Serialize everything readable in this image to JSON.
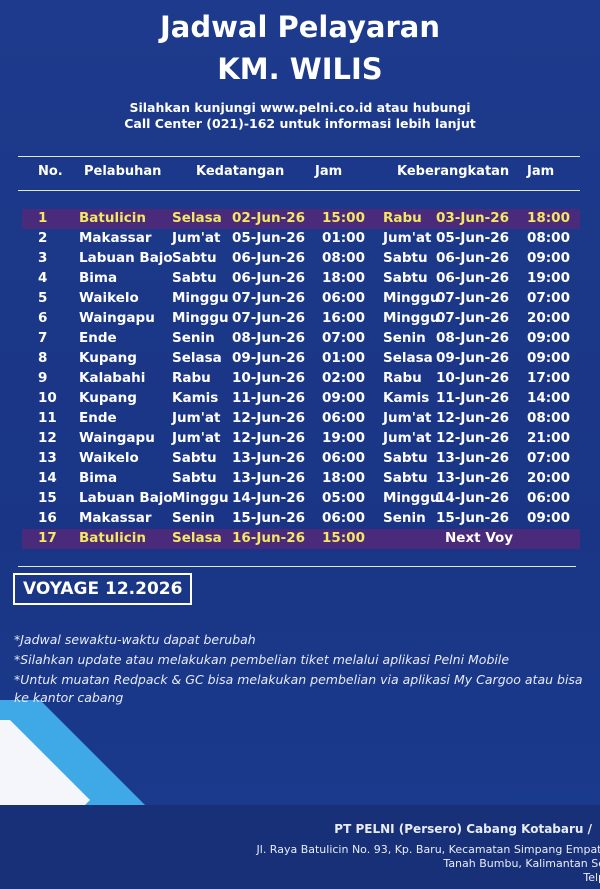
{
  "header": {
    "title": "Jadwal Pelayaran",
    "ship": "KM. WILIS",
    "info": [
      "Silahkan  kunjungi  www.pelni.co.id  atau  hubungi",
      "Call Center (021)-162 untuk informasi lebih lanjut"
    ]
  },
  "table": {
    "columns": [
      "No.",
      "Pelabuhan",
      "Kedatangan",
      "Jam",
      "Keberangkatan",
      "Jam"
    ],
    "rows": [
      [
        "1",
        "Batulicin",
        "Selasa",
        "02-Jun-26",
        "15:00",
        "Rabu",
        "03-Jun-26",
        "18:00"
      ],
      [
        "2",
        "Makassar",
        "Jum'at",
        "05-Jun-26",
        "01:00",
        "Jum'at",
        "05-Jun-26",
        "08:00"
      ],
      [
        "3",
        "Labuan Bajo",
        "Sabtu",
        "06-Jun-26",
        "08:00",
        "Sabtu",
        "06-Jun-26",
        "09:00"
      ],
      [
        "4",
        "Bima",
        "Sabtu",
        "06-Jun-26",
        "18:00",
        "Sabtu",
        "06-Jun-26",
        "19:00"
      ],
      [
        "5",
        "Waikelo",
        "Minggu",
        "07-Jun-26",
        "06:00",
        "Minggu",
        "07-Jun-26",
        "07:00"
      ],
      [
        "6",
        "Waingapu",
        "Minggu",
        "07-Jun-26",
        "16:00",
        "Minggu",
        "07-Jun-26",
        "20:00"
      ],
      [
        "7",
        "Ende",
        "Senin",
        "08-Jun-26",
        "07:00",
        "Senin",
        "08-Jun-26",
        "09:00"
      ],
      [
        "8",
        "Kupang",
        "Selasa",
        "09-Jun-26",
        "01:00",
        "Selasa",
        "09-Jun-26",
        "09:00"
      ],
      [
        "9",
        "Kalabahi",
        "Rabu",
        "10-Jun-26",
        "02:00",
        "Rabu",
        "10-Jun-26",
        "17:00"
      ],
      [
        "10",
        "Kupang",
        "Kamis",
        "11-Jun-26",
        "09:00",
        "Kamis",
        "11-Jun-26",
        "14:00"
      ],
      [
        "11",
        "Ende",
        "Jum'at",
        "12-Jun-26",
        "06:00",
        "Jum'at",
        "12-Jun-26",
        "08:00"
      ],
      [
        "12",
        "Waingapu",
        "Jum'at",
        "12-Jun-26",
        "19:00",
        "Jum'at",
        "12-Jun-26",
        "21:00"
      ],
      [
        "13",
        "Waikelo",
        "Sabtu",
        "13-Jun-26",
        "06:00",
        "Sabtu",
        "13-Jun-26",
        "07:00"
      ],
      [
        "14",
        "Bima",
        "Sabtu",
        "13-Jun-26",
        "18:00",
        "Sabtu",
        "13-Jun-26",
        "20:00"
      ],
      [
        "15",
        "Labuan Bajo",
        "Minggu",
        "14-Jun-26",
        "05:00",
        "Minggu",
        "14-Jun-26",
        "06:00"
      ],
      [
        "16",
        "Makassar",
        "Senin",
        "15-Jun-26",
        "06:00",
        "Senin",
        "15-Jun-26",
        "09:00"
      ],
      [
        "17",
        "Batulicin",
        "Selasa",
        "16-Jun-26",
        "15:00",
        "Next Voy"
      ]
    ],
    "highlighted": [
      0,
      16
    ]
  },
  "voyage": "VOYAGE 12.2026",
  "notes": [
    "*Jadwal sewaktu-waktu dapat berubah",
    "*Silahkan update atau melakukan pembelian tiket melalui aplikasi Pelni Mobile",
    "*Untuk muatan Redpack & GC bisa melakukan pembelian via aplikasi My Cargoo atau bisa ke kantor cabang"
  ],
  "footer": [
    "PT PELNI (Persero) Cabang Kotabaru /",
    "Jl. Raya Batulicin No. 93, Kp. Baru, Kecamatan Simpang Empat,",
    "Tanah Bumbu, Kalimantan Se",
    "Telp"
  ]
}
